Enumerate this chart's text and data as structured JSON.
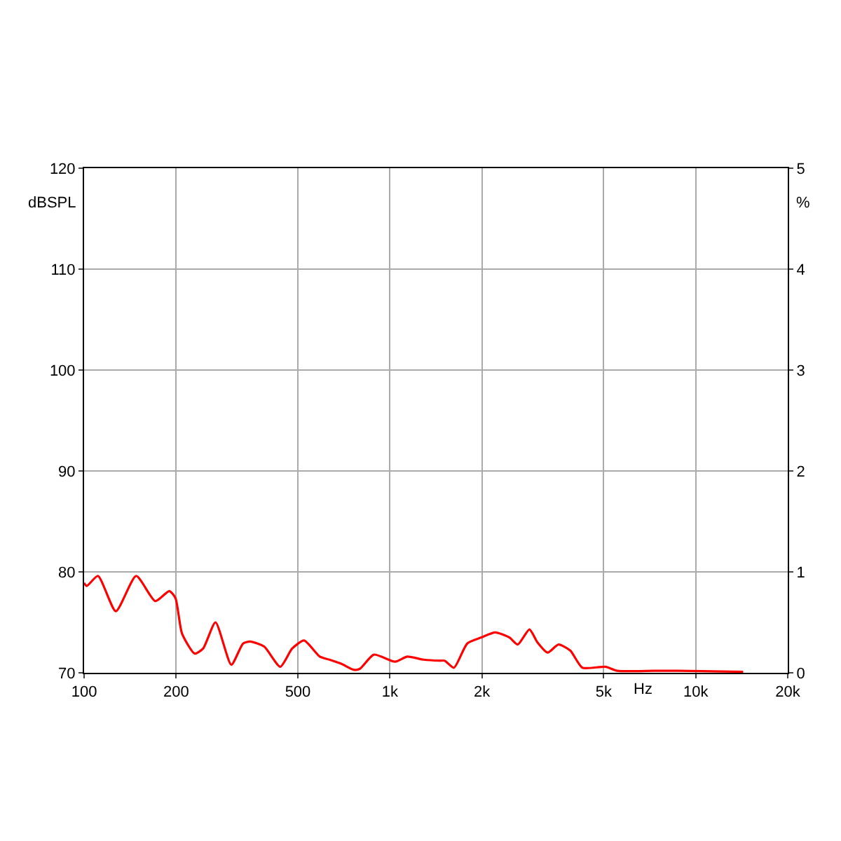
{
  "chart_data": {
    "type": "line",
    "xlabel": "Hz",
    "ylabel": "dBSPL",
    "y2label": "%",
    "log": "x",
    "x": [
      100,
      102,
      111,
      127,
      148,
      171,
      190,
      199,
      209,
      230,
      245,
      269,
      303,
      331,
      349,
      388,
      438,
      479,
      524,
      590,
      634,
      693,
      761,
      798,
      886,
      1040,
      1140,
      1290,
      1450,
      1510,
      1620,
      1790,
      1990,
      2210,
      2460,
      2620,
      2860,
      3040,
      3280,
      3560,
      3890,
      4260,
      5070,
      5540,
      7330,
      8740,
      14300
    ],
    "series": [
      {
        "color": "#ff0000",
        "values": [
          78.9,
          78.6,
          79.6,
          76.1,
          79.6,
          77.1,
          78.1,
          77.4,
          73.9,
          71.9,
          72.4,
          75.0,
          70.8,
          72.9,
          73.1,
          72.6,
          70.6,
          72.4,
          73.2,
          71.6,
          71.3,
          70.9,
          70.3,
          70.4,
          71.8,
          71.1,
          71.6,
          71.3,
          71.2,
          71.2,
          70.5,
          72.9,
          73.5,
          74.0,
          73.5,
          72.8,
          74.3,
          73.0,
          72.0,
          72.8,
          72.2,
          70.5,
          70.6,
          70.2,
          70.2,
          70.2,
          70.1
        ]
      }
    ],
    "xlim": [
      100,
      20000
    ],
    "xticks": [
      100,
      200,
      500,
      {
        "value": 1000,
        "label": "1k"
      },
      {
        "value": 2000,
        "label": "2k"
      },
      {
        "value": 5000,
        "label": "5k"
      },
      {
        "value": 10000,
        "label": "10k"
      },
      {
        "value": 20000,
        "label": "20k"
      }
    ],
    "ylim": [
      70,
      120
    ],
    "yticks": [
      70,
      80,
      90,
      100,
      110,
      120
    ],
    "y2lim": [
      0,
      5
    ],
    "y2ticks": [
      0,
      1,
      2,
      3,
      4,
      5
    ],
    "grid": true,
    "legend": false,
    "marker": "none",
    "line_style": "solid"
  }
}
